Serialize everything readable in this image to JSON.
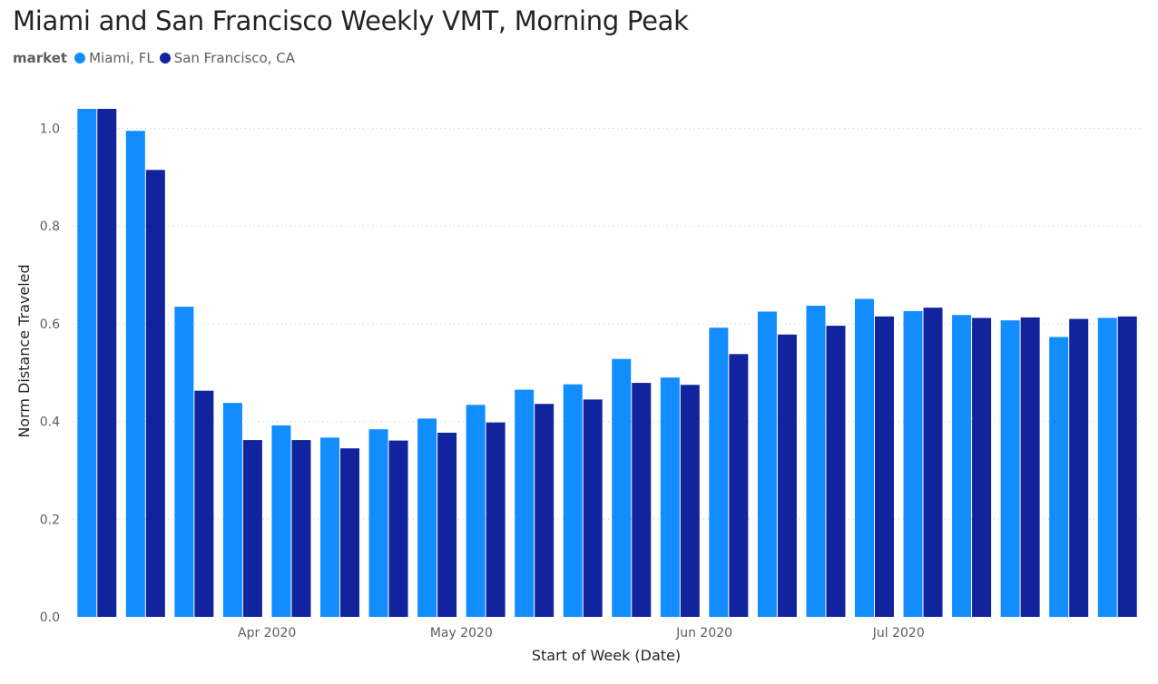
{
  "title": "Miami and San Francisco Weekly VMT, Morning Peak",
  "legend": {
    "title": "market",
    "items": [
      {
        "label": "Miami, FL",
        "color": "#118dff"
      },
      {
        "label": "San Francisco, CA",
        "color": "#12239e"
      }
    ]
  },
  "chart_data": {
    "type": "bar",
    "xlabel": "Start of Week (Date)",
    "ylabel": "Norm Distance Traveled",
    "ylim": [
      0,
      1.04
    ],
    "yticks": [
      "0.0",
      "0.2",
      "0.4",
      "0.6",
      "0.8",
      "1.0"
    ],
    "ytick_values": [
      0,
      0.2,
      0.4,
      0.6,
      0.8,
      1.0
    ],
    "grid": true,
    "x_tick_labels": [
      {
        "label": "Apr 2020",
        "after_week": 4
      },
      {
        "label": "May 2020",
        "after_week": 8
      },
      {
        "label": "Jun 2020",
        "after_week": 13
      },
      {
        "label": "Jul 2020",
        "after_week": 17
      }
    ],
    "series": [
      {
        "name": "Miami, FL",
        "color": "#118dff",
        "values": [
          1.04,
          0.995,
          0.635,
          0.438,
          0.392,
          0.367,
          0.384,
          0.406,
          0.434,
          0.465,
          0.476,
          0.528,
          0.49,
          0.592,
          0.625,
          0.637,
          0.651,
          0.626,
          0.618,
          0.607,
          0.573,
          0.612
        ]
      },
      {
        "name": "San Francisco, CA",
        "color": "#12239e",
        "values": [
          1.04,
          0.915,
          0.463,
          0.362,
          0.362,
          0.345,
          0.361,
          0.377,
          0.398,
          0.436,
          0.445,
          0.479,
          0.475,
          0.538,
          0.578,
          0.596,
          0.615,
          0.633,
          0.612,
          0.613,
          0.61,
          0.615
        ]
      }
    ]
  }
}
